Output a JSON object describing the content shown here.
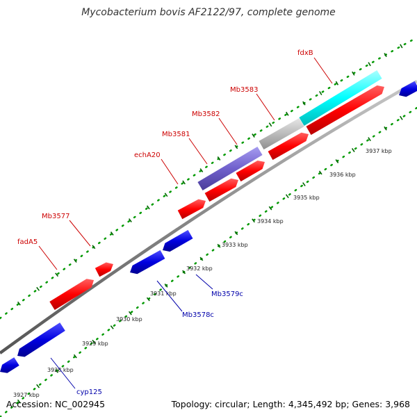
{
  "title": "Mycobacterium bovis AF2122/97, complete genome",
  "footer": {
    "accession": "Accession: NC_002945",
    "topology": "Topology: circular; Length: 4,345,492 bp; Genes: 3,968"
  },
  "colors": {
    "forward_gene": "#ff0000",
    "reverse_gene": "#0000dd",
    "highlight_cyan": "#00ffff",
    "highlight_grey": "#bbbbbb",
    "highlight_purple": "#7060cc",
    "backbone": "#888888",
    "forward_label": "#cc0000",
    "reverse_label": "#0000aa",
    "ruler_dots": "#009900"
  },
  "ticks": [
    "3927 kbp",
    "3928 kbp",
    "3929 kbp",
    "3930 kbp",
    "3931 kbp",
    "3932 kbp",
    "3933 kbp",
    "3934 kbp",
    "3935 kbp",
    "3936 kbp",
    "3937 kbp"
  ],
  "forward_labels": [
    "fadA5",
    "Mb3577",
    "echA20",
    "Mb3581",
    "Mb3582",
    "Mb3583",
    "fdxB"
  ],
  "reverse_labels": [
    "cyp125",
    "Mb3578c",
    "Mb3579c"
  ]
}
